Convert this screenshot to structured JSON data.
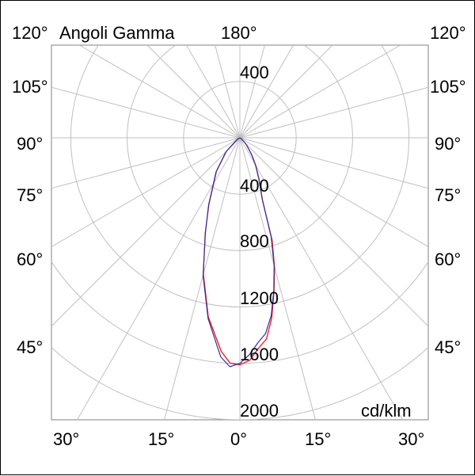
{
  "chart_data": {
    "type": "polar-line",
    "title": "Angoli Gamma",
    "unit": "cd/klm",
    "radial_ticks": [
      400,
      800,
      1200,
      1600,
      2000
    ],
    "radial_max": 2000,
    "top_angle_label": "180°",
    "side_angle_labels": [
      "120°",
      "105°",
      "90°",
      "75°",
      "60°",
      "45°"
    ],
    "bottom_angle_labels": [
      "30°",
      "15°",
      "0°",
      "15°",
      "30°"
    ],
    "grid": true,
    "series": [
      {
        "color": "#ff0000",
        "points": [
          [
            -90,
            0
          ],
          [
            -60,
            20
          ],
          [
            -45,
            135
          ],
          [
            -35,
            290
          ],
          [
            -30,
            370
          ],
          [
            -25,
            520
          ],
          [
            -20,
            720
          ],
          [
            -15,
            1000
          ],
          [
            -10,
            1290
          ],
          [
            -5,
            1520
          ],
          [
            -2.5,
            1600
          ],
          [
            0,
            1610
          ],
          [
            2.5,
            1580
          ],
          [
            5,
            1500
          ],
          [
            7.5,
            1440
          ],
          [
            10,
            1300
          ],
          [
            12.5,
            1120
          ],
          [
            15,
            950
          ],
          [
            17.5,
            760
          ],
          [
            20,
            470
          ],
          [
            25,
            320
          ],
          [
            30,
            225
          ],
          [
            35,
            150
          ],
          [
            45,
            60
          ],
          [
            60,
            10
          ],
          [
            90,
            0
          ]
        ]
      },
      {
        "color": "#3030a0",
        "points": [
          [
            -90,
            0
          ],
          [
            -60,
            20
          ],
          [
            -45,
            140
          ],
          [
            -35,
            295
          ],
          [
            -30,
            375
          ],
          [
            -25,
            525
          ],
          [
            -20,
            715
          ],
          [
            -15,
            1010
          ],
          [
            -10,
            1300
          ],
          [
            -5,
            1560
          ],
          [
            -2.5,
            1625
          ],
          [
            0,
            1600
          ],
          [
            2.5,
            1540
          ],
          [
            5,
            1460
          ],
          [
            7.5,
            1400
          ],
          [
            10,
            1280
          ],
          [
            12.5,
            1110
          ],
          [
            15,
            940
          ],
          [
            17.5,
            740
          ],
          [
            20,
            465
          ],
          [
            25,
            315
          ],
          [
            30,
            220
          ],
          [
            35,
            145
          ],
          [
            45,
            60
          ],
          [
            60,
            10
          ],
          [
            90,
            0
          ]
        ]
      }
    ]
  }
}
